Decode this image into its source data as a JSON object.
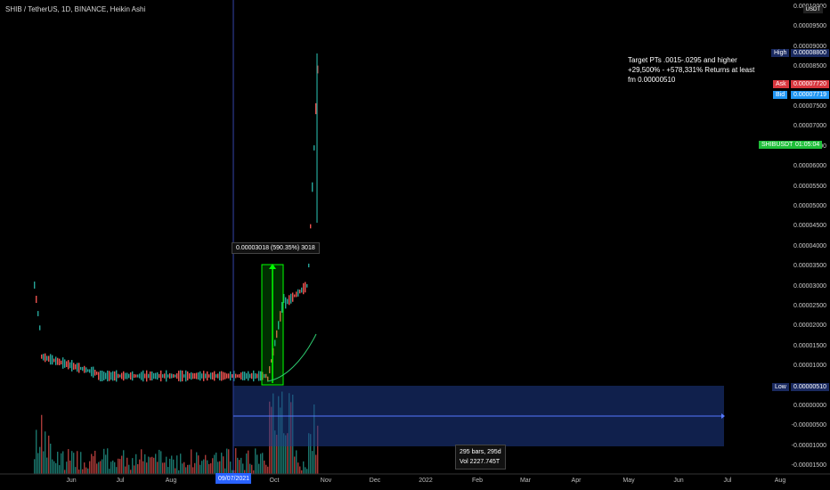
{
  "title": "SHIB / TetherUS, 1D, BINANCE, Heikin Ashi",
  "currency": "USDT",
  "y_labels": [
    "0.00010000",
    "0.00009500",
    "0.00009000",
    "0.00008500",
    "0.00008000",
    "0.00007500",
    "0.00007000",
    "0.00006500",
    "0.00006000",
    "0.00005500",
    "0.00005000",
    "0.00004500",
    "0.00004000",
    "0.00003500",
    "0.00003000",
    "0.00002500",
    "0.00002000",
    "0.00001500",
    "0.00001000",
    "0.00000500",
    "0.00000000",
    "-0.00000500",
    "-0.00001000",
    "-0.00001500"
  ],
  "x_labels": [
    "Jun",
    "Jul",
    "Aug",
    "Oct",
    "Nov",
    "Dec",
    "2022",
    "Feb",
    "Mar",
    "Apr",
    "May",
    "Jun",
    "Jul",
    "Aug"
  ],
  "date_tag": "09/07/2021",
  "tags": {
    "high_label": "High",
    "high_value": "0.00008800",
    "ask_label": "Ask",
    "ask_value": "0.00007720",
    "bid_label": "Bid",
    "bid_value": "0.00007719",
    "symbol_label": "SHIBUSDT",
    "symbol_value": "01:05:04",
    "low_label": "Low",
    "low_value": "0.00000510"
  },
  "annotation": {
    "line1": "Target PTs .0015-.0295 and higher",
    "line2": "+29,500% - +578,331% Returns at least",
    "line3": "fm 0.00000510"
  },
  "measure": {
    "label": "0.00003018 (590.35%) 3018",
    "bars": "295 bars, 295d",
    "vol": "Vol 2227.745T"
  },
  "colors": {
    "up": "#26a69a",
    "down": "#ef5350",
    "measure": "#1e3a8a",
    "green": "#00ff00"
  }
}
